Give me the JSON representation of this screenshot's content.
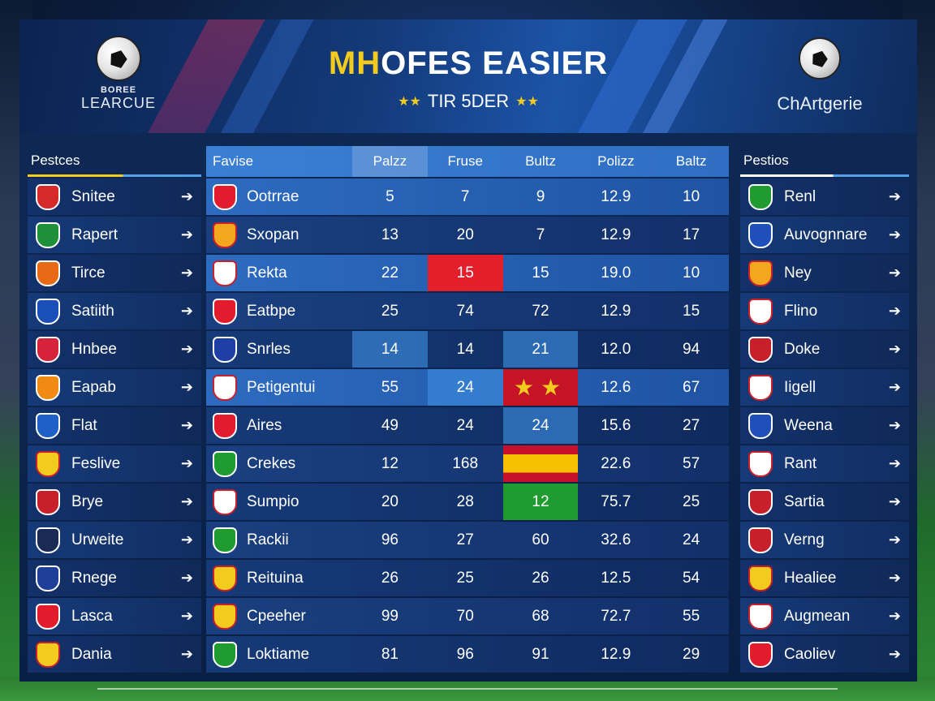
{
  "header": {
    "league_top": "BOREE",
    "league_name": "LEARCUE",
    "title_part1": "MH",
    "title_part2": "OFES EASIER",
    "subtitle": "TIR 5DER",
    "subtitle_star": "★★",
    "right_logo_name": "ChArtgerie"
  },
  "left_panel": {
    "title": "Pestces",
    "items": [
      {
        "label": "Snitee",
        "color": "#d62a2a"
      },
      {
        "label": "Rapert",
        "color": "#1f8f3a"
      },
      {
        "label": "Tirce",
        "color": "#e86a14"
      },
      {
        "label": "Satiith",
        "color": "#1b4fb8"
      },
      {
        "label": "Hnbee",
        "color": "#d6223a"
      },
      {
        "label": "Eapab",
        "color": "#f08a12"
      },
      {
        "label": "Flat",
        "color": "#1f5fc8"
      },
      {
        "label": "Feslive",
        "color": "#f2cb1e"
      },
      {
        "label": "Brye",
        "color": "#c8202a"
      },
      {
        "label": "Urweite",
        "color": "#1a2a55"
      },
      {
        "label": "Rnege",
        "color": "#1f3f9a"
      },
      {
        "label": "Lasca",
        "color": "#e21c2c"
      },
      {
        "label": "Dania",
        "color": "#f2cb1e"
      }
    ]
  },
  "table": {
    "headers": [
      "Favise",
      "Palzz",
      "Fruse",
      "Bultz",
      "Polizz",
      "Baltz"
    ],
    "rows": [
      {
        "name": "Ootrrae",
        "crest": "#e21c2c",
        "values": [
          "5",
          "7",
          "9",
          "12.9",
          "10"
        ]
      },
      {
        "name": "Sxopan",
        "crest": "#f2a71e",
        "values": [
          "13",
          "20",
          "7",
          "12.9",
          "17"
        ]
      },
      {
        "name": "Rekta",
        "crest": "#ffffff",
        "values": [
          "22",
          "15",
          "15",
          "19.0",
          "10"
        ]
      },
      {
        "name": "Eatbpe",
        "crest": "#e21c2c",
        "values": [
          "25",
          "74",
          "72",
          "12.9",
          "15"
        ]
      },
      {
        "name": "Snrles",
        "crest": "#1f3fa6",
        "values": [
          "14",
          "14",
          "21",
          "12.0",
          "94"
        ]
      },
      {
        "name": "Petigentui",
        "crest": "#ffffff",
        "values": [
          "55",
          "24",
          "",
          "12.6",
          "67"
        ]
      },
      {
        "name": "Aires",
        "crest": "#e21c2c",
        "values": [
          "49",
          "24",
          "24",
          "15.6",
          "27"
        ]
      },
      {
        "name": "Crekes",
        "crest": "#1f9b2f",
        "values": [
          "12",
          "168",
          "",
          "22.6",
          "57"
        ]
      },
      {
        "name": "Sumpio",
        "crest": "#ffffff",
        "values": [
          "20",
          "28",
          "12",
          "75.7",
          "25"
        ]
      },
      {
        "name": "Rackii",
        "crest": "#1f9b2f",
        "values": [
          "96",
          "27",
          "60",
          "32.6",
          "24"
        ]
      },
      {
        "name": "Reituina",
        "crest": "#f2cb1e",
        "values": [
          "26",
          "25",
          "26",
          "12.5",
          "54"
        ]
      },
      {
        "name": "Cpeeher",
        "crest": "#f2cb1e",
        "values": [
          "99",
          "70",
          "68",
          "72.7",
          "55"
        ]
      },
      {
        "name": "Loktiame",
        "crest": "#1f9b2f",
        "values": [
          "81",
          "96",
          "91",
          "12.9",
          "29"
        ]
      }
    ],
    "stars": "★★"
  },
  "right_panel": {
    "title": "Pestios",
    "items": [
      {
        "label": "Renl",
        "color": "#1f9b2f"
      },
      {
        "label": "Auvognnare",
        "color": "#1f4fb8"
      },
      {
        "label": "Ney",
        "color": "#f2a71e"
      },
      {
        "label": "Flino",
        "color": "#ffffff"
      },
      {
        "label": "Doke",
        "color": "#c8202a"
      },
      {
        "label": "Iigell",
        "color": "#ffffff"
      },
      {
        "label": "Weena",
        "color": "#1f4fb8"
      },
      {
        "label": "Rant",
        "color": "#ffffff"
      },
      {
        "label": "Sartia",
        "color": "#c8202a"
      },
      {
        "label": "Verng",
        "color": "#c8202a"
      },
      {
        "label": "Healiee",
        "color": "#f2cb1e"
      },
      {
        "label": "Augmean",
        "color": "#ffffff"
      },
      {
        "label": "Caoliev",
        "color": "#e21c2c"
      }
    ]
  }
}
